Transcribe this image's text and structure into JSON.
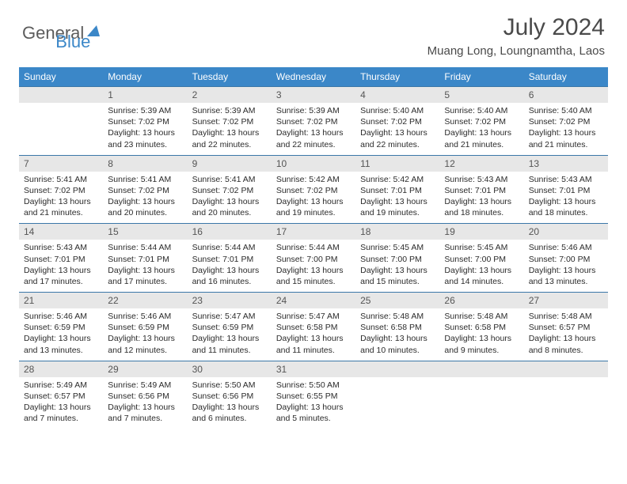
{
  "logo": {
    "part1": "General",
    "part2": "Blue"
  },
  "title": "July 2024",
  "location": "Muang Long, Loungnamtha, Laos",
  "colors": {
    "header_bg": "#3b87c8",
    "header_text": "#ffffff",
    "daynum_bg": "#e7e7e7",
    "daynum_text": "#555555",
    "body_text": "#2b2b2b",
    "title_text": "#4a4a4a",
    "row_border": "#3b77a8"
  },
  "day_headers": [
    "Sunday",
    "Monday",
    "Tuesday",
    "Wednesday",
    "Thursday",
    "Friday",
    "Saturday"
  ],
  "weeks": [
    {
      "nums": [
        "",
        "1",
        "2",
        "3",
        "4",
        "5",
        "6"
      ],
      "cells": [
        {
          "sunrise": "",
          "sunset": "",
          "daylight1": "",
          "daylight2": ""
        },
        {
          "sunrise": "Sunrise: 5:39 AM",
          "sunset": "Sunset: 7:02 PM",
          "daylight1": "Daylight: 13 hours",
          "daylight2": "and 23 minutes."
        },
        {
          "sunrise": "Sunrise: 5:39 AM",
          "sunset": "Sunset: 7:02 PM",
          "daylight1": "Daylight: 13 hours",
          "daylight2": "and 22 minutes."
        },
        {
          "sunrise": "Sunrise: 5:39 AM",
          "sunset": "Sunset: 7:02 PM",
          "daylight1": "Daylight: 13 hours",
          "daylight2": "and 22 minutes."
        },
        {
          "sunrise": "Sunrise: 5:40 AM",
          "sunset": "Sunset: 7:02 PM",
          "daylight1": "Daylight: 13 hours",
          "daylight2": "and 22 minutes."
        },
        {
          "sunrise": "Sunrise: 5:40 AM",
          "sunset": "Sunset: 7:02 PM",
          "daylight1": "Daylight: 13 hours",
          "daylight2": "and 21 minutes."
        },
        {
          "sunrise": "Sunrise: 5:40 AM",
          "sunset": "Sunset: 7:02 PM",
          "daylight1": "Daylight: 13 hours",
          "daylight2": "and 21 minutes."
        }
      ]
    },
    {
      "nums": [
        "7",
        "8",
        "9",
        "10",
        "11",
        "12",
        "13"
      ],
      "cells": [
        {
          "sunrise": "Sunrise: 5:41 AM",
          "sunset": "Sunset: 7:02 PM",
          "daylight1": "Daylight: 13 hours",
          "daylight2": "and 21 minutes."
        },
        {
          "sunrise": "Sunrise: 5:41 AM",
          "sunset": "Sunset: 7:02 PM",
          "daylight1": "Daylight: 13 hours",
          "daylight2": "and 20 minutes."
        },
        {
          "sunrise": "Sunrise: 5:41 AM",
          "sunset": "Sunset: 7:02 PM",
          "daylight1": "Daylight: 13 hours",
          "daylight2": "and 20 minutes."
        },
        {
          "sunrise": "Sunrise: 5:42 AM",
          "sunset": "Sunset: 7:02 PM",
          "daylight1": "Daylight: 13 hours",
          "daylight2": "and 19 minutes."
        },
        {
          "sunrise": "Sunrise: 5:42 AM",
          "sunset": "Sunset: 7:01 PM",
          "daylight1": "Daylight: 13 hours",
          "daylight2": "and 19 minutes."
        },
        {
          "sunrise": "Sunrise: 5:43 AM",
          "sunset": "Sunset: 7:01 PM",
          "daylight1": "Daylight: 13 hours",
          "daylight2": "and 18 minutes."
        },
        {
          "sunrise": "Sunrise: 5:43 AM",
          "sunset": "Sunset: 7:01 PM",
          "daylight1": "Daylight: 13 hours",
          "daylight2": "and 18 minutes."
        }
      ]
    },
    {
      "nums": [
        "14",
        "15",
        "16",
        "17",
        "18",
        "19",
        "20"
      ],
      "cells": [
        {
          "sunrise": "Sunrise: 5:43 AM",
          "sunset": "Sunset: 7:01 PM",
          "daylight1": "Daylight: 13 hours",
          "daylight2": "and 17 minutes."
        },
        {
          "sunrise": "Sunrise: 5:44 AM",
          "sunset": "Sunset: 7:01 PM",
          "daylight1": "Daylight: 13 hours",
          "daylight2": "and 17 minutes."
        },
        {
          "sunrise": "Sunrise: 5:44 AM",
          "sunset": "Sunset: 7:01 PM",
          "daylight1": "Daylight: 13 hours",
          "daylight2": "and 16 minutes."
        },
        {
          "sunrise": "Sunrise: 5:44 AM",
          "sunset": "Sunset: 7:00 PM",
          "daylight1": "Daylight: 13 hours",
          "daylight2": "and 15 minutes."
        },
        {
          "sunrise": "Sunrise: 5:45 AM",
          "sunset": "Sunset: 7:00 PM",
          "daylight1": "Daylight: 13 hours",
          "daylight2": "and 15 minutes."
        },
        {
          "sunrise": "Sunrise: 5:45 AM",
          "sunset": "Sunset: 7:00 PM",
          "daylight1": "Daylight: 13 hours",
          "daylight2": "and 14 minutes."
        },
        {
          "sunrise": "Sunrise: 5:46 AM",
          "sunset": "Sunset: 7:00 PM",
          "daylight1": "Daylight: 13 hours",
          "daylight2": "and 13 minutes."
        }
      ]
    },
    {
      "nums": [
        "21",
        "22",
        "23",
        "24",
        "25",
        "26",
        "27"
      ],
      "cells": [
        {
          "sunrise": "Sunrise: 5:46 AM",
          "sunset": "Sunset: 6:59 PM",
          "daylight1": "Daylight: 13 hours",
          "daylight2": "and 13 minutes."
        },
        {
          "sunrise": "Sunrise: 5:46 AM",
          "sunset": "Sunset: 6:59 PM",
          "daylight1": "Daylight: 13 hours",
          "daylight2": "and 12 minutes."
        },
        {
          "sunrise": "Sunrise: 5:47 AM",
          "sunset": "Sunset: 6:59 PM",
          "daylight1": "Daylight: 13 hours",
          "daylight2": "and 11 minutes."
        },
        {
          "sunrise": "Sunrise: 5:47 AM",
          "sunset": "Sunset: 6:58 PM",
          "daylight1": "Daylight: 13 hours",
          "daylight2": "and 11 minutes."
        },
        {
          "sunrise": "Sunrise: 5:48 AM",
          "sunset": "Sunset: 6:58 PM",
          "daylight1": "Daylight: 13 hours",
          "daylight2": "and 10 minutes."
        },
        {
          "sunrise": "Sunrise: 5:48 AM",
          "sunset": "Sunset: 6:58 PM",
          "daylight1": "Daylight: 13 hours",
          "daylight2": "and 9 minutes."
        },
        {
          "sunrise": "Sunrise: 5:48 AM",
          "sunset": "Sunset: 6:57 PM",
          "daylight1": "Daylight: 13 hours",
          "daylight2": "and 8 minutes."
        }
      ]
    },
    {
      "nums": [
        "28",
        "29",
        "30",
        "31",
        "",
        "",
        ""
      ],
      "cells": [
        {
          "sunrise": "Sunrise: 5:49 AM",
          "sunset": "Sunset: 6:57 PM",
          "daylight1": "Daylight: 13 hours",
          "daylight2": "and 7 minutes."
        },
        {
          "sunrise": "Sunrise: 5:49 AM",
          "sunset": "Sunset: 6:56 PM",
          "daylight1": "Daylight: 13 hours",
          "daylight2": "and 7 minutes."
        },
        {
          "sunrise": "Sunrise: 5:50 AM",
          "sunset": "Sunset: 6:56 PM",
          "daylight1": "Daylight: 13 hours",
          "daylight2": "and 6 minutes."
        },
        {
          "sunrise": "Sunrise: 5:50 AM",
          "sunset": "Sunset: 6:55 PM",
          "daylight1": "Daylight: 13 hours",
          "daylight2": "and 5 minutes."
        },
        {
          "sunrise": "",
          "sunset": "",
          "daylight1": "",
          "daylight2": ""
        },
        {
          "sunrise": "",
          "sunset": "",
          "daylight1": "",
          "daylight2": ""
        },
        {
          "sunrise": "",
          "sunset": "",
          "daylight1": "",
          "daylight2": ""
        }
      ]
    }
  ]
}
